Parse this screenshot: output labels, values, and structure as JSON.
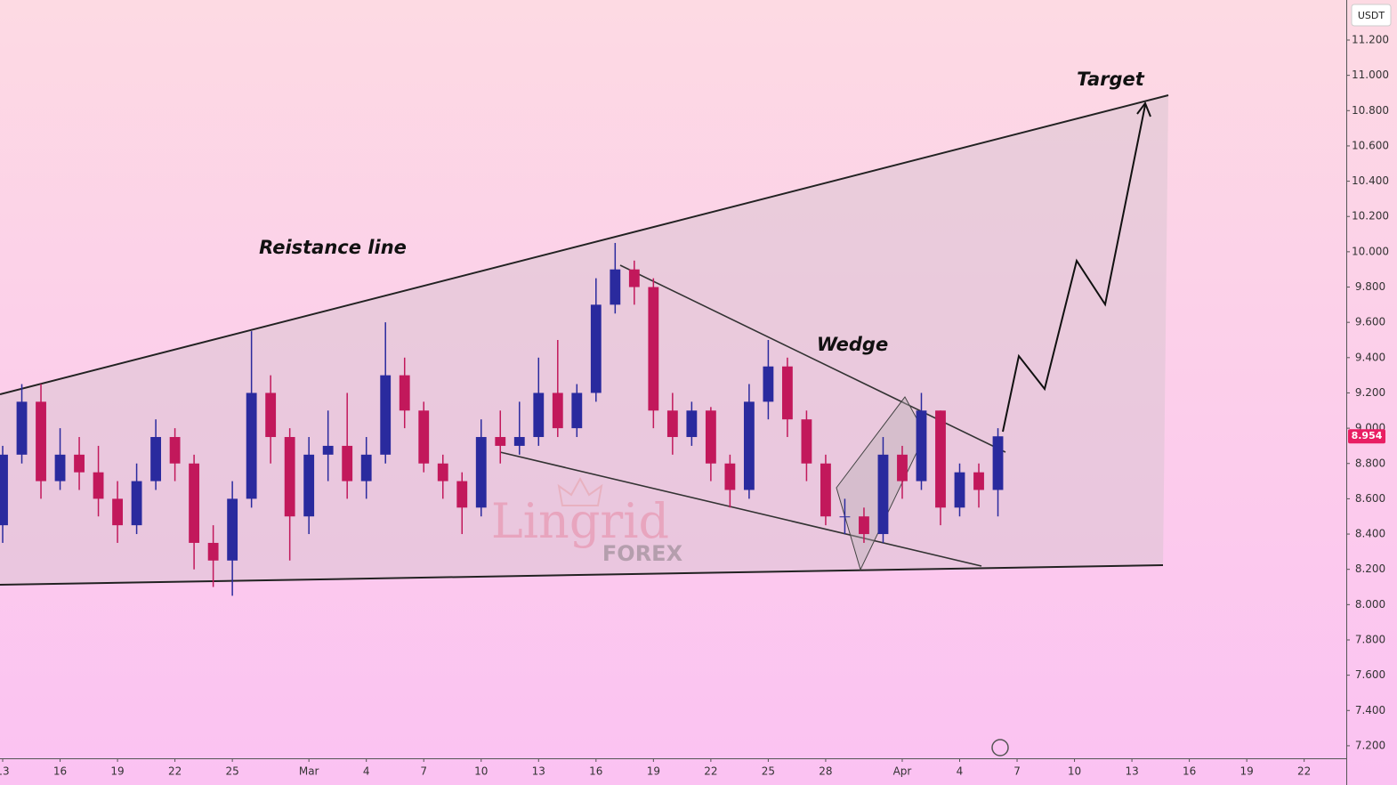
{
  "chart_data": {
    "type": "candlestick",
    "currency": "USDT",
    "x": [
      0,
      1,
      2,
      3,
      4,
      5,
      6,
      7,
      8,
      9,
      10,
      11,
      12,
      13,
      14,
      15,
      16,
      17,
      18,
      19,
      20,
      21,
      22,
      23,
      24,
      25,
      26,
      27,
      28,
      29,
      30,
      31,
      32,
      33,
      34,
      35,
      36,
      37,
      38,
      39,
      40,
      41,
      42,
      43,
      44,
      45,
      46,
      47,
      48,
      49,
      50,
      51,
      52
    ],
    "open": [
      8.45,
      8.85,
      9.15,
      8.7,
      8.85,
      8.75,
      8.6,
      8.45,
      8.7,
      8.95,
      8.8,
      8.35,
      8.25,
      8.6,
      9.2,
      8.95,
      8.5,
      8.85,
      8.9,
      8.7,
      8.85,
      9.3,
      9.1,
      8.8,
      8.7,
      8.55,
      8.95,
      8.9,
      8.95,
      9.2,
      9.0,
      9.2,
      9.7,
      9.9,
      9.8,
      9.1,
      8.95,
      9.1,
      8.8,
      8.65,
      9.15,
      9.35,
      9.05,
      8.8,
      8.5,
      8.5,
      8.4,
      8.85,
      8.7,
      9.1,
      8.55,
      8.75,
      8.65
    ],
    "high": [
      8.9,
      9.25,
      9.25,
      9.0,
      8.95,
      8.9,
      8.7,
      8.8,
      9.05,
      9.0,
      8.85,
      8.45,
      8.7,
      9.55,
      9.3,
      9.0,
      8.95,
      9.1,
      9.2,
      8.95,
      9.6,
      9.4,
      9.15,
      8.85,
      8.75,
      9.05,
      9.1,
      9.15,
      9.4,
      9.5,
      9.25,
      9.85,
      10.05,
      9.95,
      9.85,
      9.2,
      9.15,
      9.12,
      8.85,
      9.25,
      9.5,
      9.4,
      9.1,
      8.85,
      8.6,
      8.55,
      8.95,
      8.9,
      9.2,
      9.1,
      8.8,
      8.8,
      9.0
    ],
    "low": [
      8.35,
      8.8,
      8.6,
      8.65,
      8.65,
      8.5,
      8.35,
      8.4,
      8.65,
      8.7,
      8.2,
      8.1,
      8.05,
      8.55,
      8.8,
      8.25,
      8.4,
      8.7,
      8.6,
      8.6,
      8.8,
      9.0,
      8.75,
      8.6,
      8.4,
      8.5,
      8.8,
      8.85,
      8.9,
      8.95,
      8.95,
      9.15,
      9.65,
      9.7,
      9.0,
      8.85,
      8.9,
      8.7,
      8.55,
      8.6,
      9.05,
      8.95,
      8.7,
      8.45,
      8.4,
      8.35,
      8.35,
      8.6,
      8.65,
      8.45,
      8.5,
      8.55,
      8.5
    ],
    "close": [
      8.85,
      9.15,
      8.7,
      8.85,
      8.75,
      8.6,
      8.45,
      8.7,
      8.95,
      8.8,
      8.35,
      8.25,
      8.6,
      9.2,
      8.95,
      8.5,
      8.85,
      8.9,
      8.7,
      8.85,
      9.3,
      9.1,
      8.8,
      8.7,
      8.55,
      8.95,
      8.9,
      8.95,
      9.2,
      9.0,
      9.2,
      9.7,
      9.9,
      9.8,
      9.1,
      8.95,
      9.1,
      8.8,
      8.65,
      9.15,
      9.35,
      9.05,
      8.8,
      8.5,
      8.5,
      8.4,
      8.85,
      8.7,
      9.1,
      8.55,
      8.75,
      8.65,
      8.954
    ],
    "up_color": "#2a2a9e",
    "down_color": "#c2185b",
    "last_price": 8.954,
    "last_price_color": "#e91e63",
    "xlim": [
      -0.14,
      70.2
    ],
    "ylim": [
      7.129,
      11.427
    ],
    "xticks": [
      {
        "value": 0,
        "label": "13"
      },
      {
        "value": 3,
        "label": "16"
      },
      {
        "value": 6,
        "label": "19"
      },
      {
        "value": 9,
        "label": "22"
      },
      {
        "value": 12,
        "label": "25"
      },
      {
        "value": 16,
        "label": "Mar"
      },
      {
        "value": 19,
        "label": "4"
      },
      {
        "value": 22,
        "label": "7"
      },
      {
        "value": 25,
        "label": "10"
      },
      {
        "value": 28,
        "label": "13"
      },
      {
        "value": 31,
        "label": "16"
      },
      {
        "value": 34,
        "label": "19"
      },
      {
        "value": 37,
        "label": "22"
      },
      {
        "value": 40,
        "label": "25"
      },
      {
        "value": 43,
        "label": "28"
      },
      {
        "value": 47,
        "label": "Apr"
      },
      {
        "value": 50,
        "label": "4"
      },
      {
        "value": 53,
        "label": "7"
      },
      {
        "value": 56,
        "label": "10"
      },
      {
        "value": 59,
        "label": "13"
      },
      {
        "value": 62,
        "label": "16"
      },
      {
        "value": 65,
        "label": "19"
      },
      {
        "value": 68,
        "label": "22"
      }
    ],
    "yticks": [
      {
        "value": 7.2,
        "label": "7.200"
      },
      {
        "value": 7.4,
        "label": "7.400"
      },
      {
        "value": 7.6,
        "label": "7.600"
      },
      {
        "value": 7.8,
        "label": "7.800"
      },
      {
        "value": 8.0,
        "label": "8.000"
      },
      {
        "value": 8.2,
        "label": "8.200"
      },
      {
        "value": 8.4,
        "label": "8.400"
      },
      {
        "value": 8.6,
        "label": "8.600"
      },
      {
        "value": 8.8,
        "label": "8.800"
      },
      {
        "value": 9.0,
        "label": "9.000"
      },
      {
        "value": 9.2,
        "label": "9.200"
      },
      {
        "value": 9.4,
        "label": "9.400"
      },
      {
        "value": 9.6,
        "label": "9.600"
      },
      {
        "value": 9.8,
        "label": "9.800"
      },
      {
        "value": 10.0,
        "label": "10.000"
      },
      {
        "value": 10.2,
        "label": "10.200"
      },
      {
        "value": 10.4,
        "label": "10.400"
      },
      {
        "value": 10.6,
        "label": "10.600"
      },
      {
        "value": 10.8,
        "label": "10.800"
      },
      {
        "value": 11.0,
        "label": "11.000"
      },
      {
        "value": 11.2,
        "label": "11.200"
      }
    ],
    "grid": false,
    "annotations": [
      "Reistance line",
      "Wedge",
      "Target"
    ],
    "watermark": {
      "title": "Lingrid",
      "subtitle": "FOREX"
    }
  }
}
